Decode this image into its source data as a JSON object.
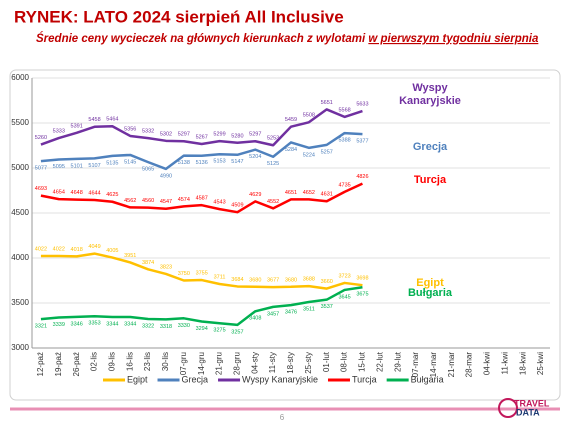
{
  "chart_data": {
    "type": "line",
    "title": "RYNEK: LATO 2024 sierpień All Inclusive",
    "subtitle": [
      "Średnie ceny wycieczek na głównych kierunkach z wylotami",
      "w pierwszym tygodniu sierpnia"
    ],
    "categories": [
      "12-paź",
      "19-paź",
      "26-paź",
      "02-lis",
      "09-lis",
      "16-lis",
      "23-lis",
      "30-lis",
      "07-gru",
      "14-gru",
      "21-gru",
      "28-gru",
      "04-sty",
      "11-sty",
      "18-sty",
      "25-sty",
      "01-lut",
      "08-lut",
      "15-lut",
      "22-lut",
      "29-lut",
      "07-mar",
      "14-mar",
      "21-mar",
      "28-mar",
      "04-kwi",
      "11-kwi",
      "18-kwi",
      "25-kwi"
    ],
    "series": [
      {
        "name": "Egipt",
        "color": "#ffc000",
        "annotation": [
          "Egipt"
        ],
        "label_side": "above",
        "values": [
          4022,
          4022,
          4018,
          4049,
          4005,
          3951,
          3874,
          3823,
          3750,
          3755,
          3711,
          3684,
          3680,
          3677,
          3680,
          3688,
          3660,
          3723,
          3698,
          null,
          null,
          null,
          null,
          null,
          null,
          null,
          null,
          null,
          null
        ]
      },
      {
        "name": "Grecja",
        "color": "#4f81bd",
        "annotation": [
          "Grecja"
        ],
        "label_side": "below",
        "values": [
          5077,
          5095,
          5101,
          5107,
          5135,
          5145,
          5065,
          4990,
          5138,
          5136,
          5153,
          5147,
          5204,
          5125,
          5284,
          5224,
          5257,
          5388,
          5377,
          null,
          null,
          null,
          null,
          null,
          null,
          null,
          null,
          null,
          null
        ]
      },
      {
        "name": "Wyspy Kanaryjskie",
        "color": "#7030a0",
        "annotation": [
          "Wyspy",
          "Kanaryjskie"
        ],
        "label_side": "above",
        "values": [
          5260,
          5333,
          5391,
          5458,
          5464,
          5356,
          5332,
          5302,
          5297,
          5267,
          5299,
          5280,
          5297,
          5253,
          5459,
          5508,
          5651,
          5568,
          5633,
          null,
          null,
          null,
          null,
          null,
          null,
          null,
          null,
          null,
          null
        ]
      },
      {
        "name": "Turcja",
        "color": "#ff0000",
        "annotation": [
          "Turcja"
        ],
        "label_side": "above",
        "values": [
          4693,
          4654,
          4648,
          4644,
          4625,
          4562,
          4560,
          4547,
          4574,
          4587,
          4543,
          4509,
          4629,
          4552,
          4651,
          4652,
          4631,
          4735,
          4826,
          null,
          null,
          null,
          null,
          null,
          null,
          null,
          null,
          null,
          null
        ]
      },
      {
        "name": "Bułgaria",
        "color": "#00b050",
        "annotation": [
          "Bułgaria"
        ],
        "label_side": "below",
        "values": [
          3321,
          3339,
          3346,
          3353,
          3344,
          3344,
          3322,
          3318,
          3330,
          3294,
          3275,
          3257,
          3408,
          3457,
          3476,
          3511,
          3537,
          3645,
          3675,
          null,
          null,
          null,
          null,
          null,
          null,
          null,
          null,
          null,
          null
        ]
      }
    ],
    "ylim": [
      3000,
      6000
    ],
    "yticks": [
      3000,
      3500,
      4000,
      4500,
      5000,
      5500,
      6000
    ],
    "grid": true,
    "page_number": "6",
    "logo": [
      "TRAVEL",
      "DATA"
    ]
  }
}
